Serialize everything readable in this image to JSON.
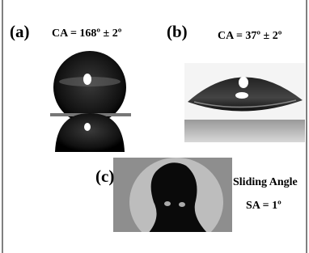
{
  "panels": [
    {
      "label": "(a)",
      "caption": "CA = 168º ± 2º"
    },
    {
      "label": "(b)",
      "caption": "CA = 37º ± 2º"
    },
    {
      "label": "(c)",
      "caption_lines": [
        "Sliding Angle",
        "SA = 1º"
      ]
    }
  ]
}
